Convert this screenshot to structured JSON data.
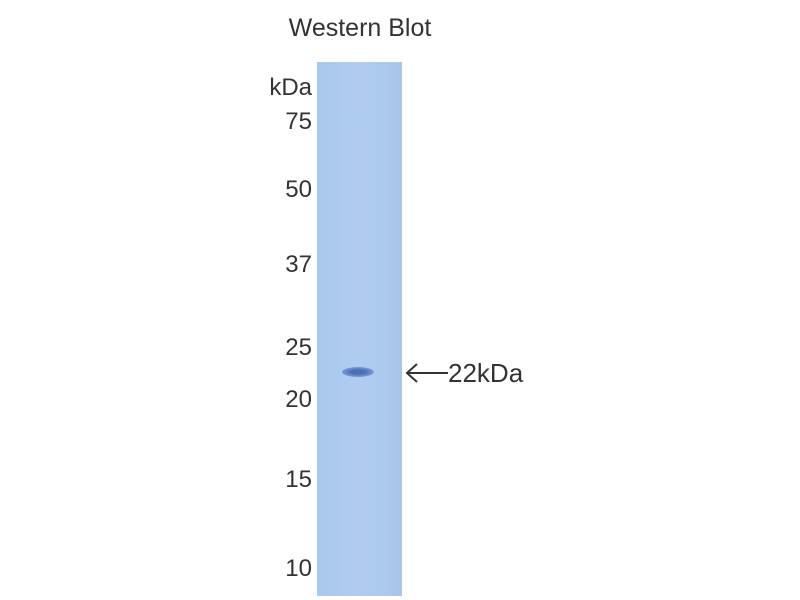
{
  "title": "Western Blot",
  "unit_label": "kDa",
  "markers": [
    "75",
    "50",
    "37",
    "25",
    "20",
    "15",
    "10"
  ],
  "band_label": "22kDa",
  "colors": {
    "lane": "#afcbf0",
    "band": "#4d6fb6",
    "text": "#333333"
  }
}
